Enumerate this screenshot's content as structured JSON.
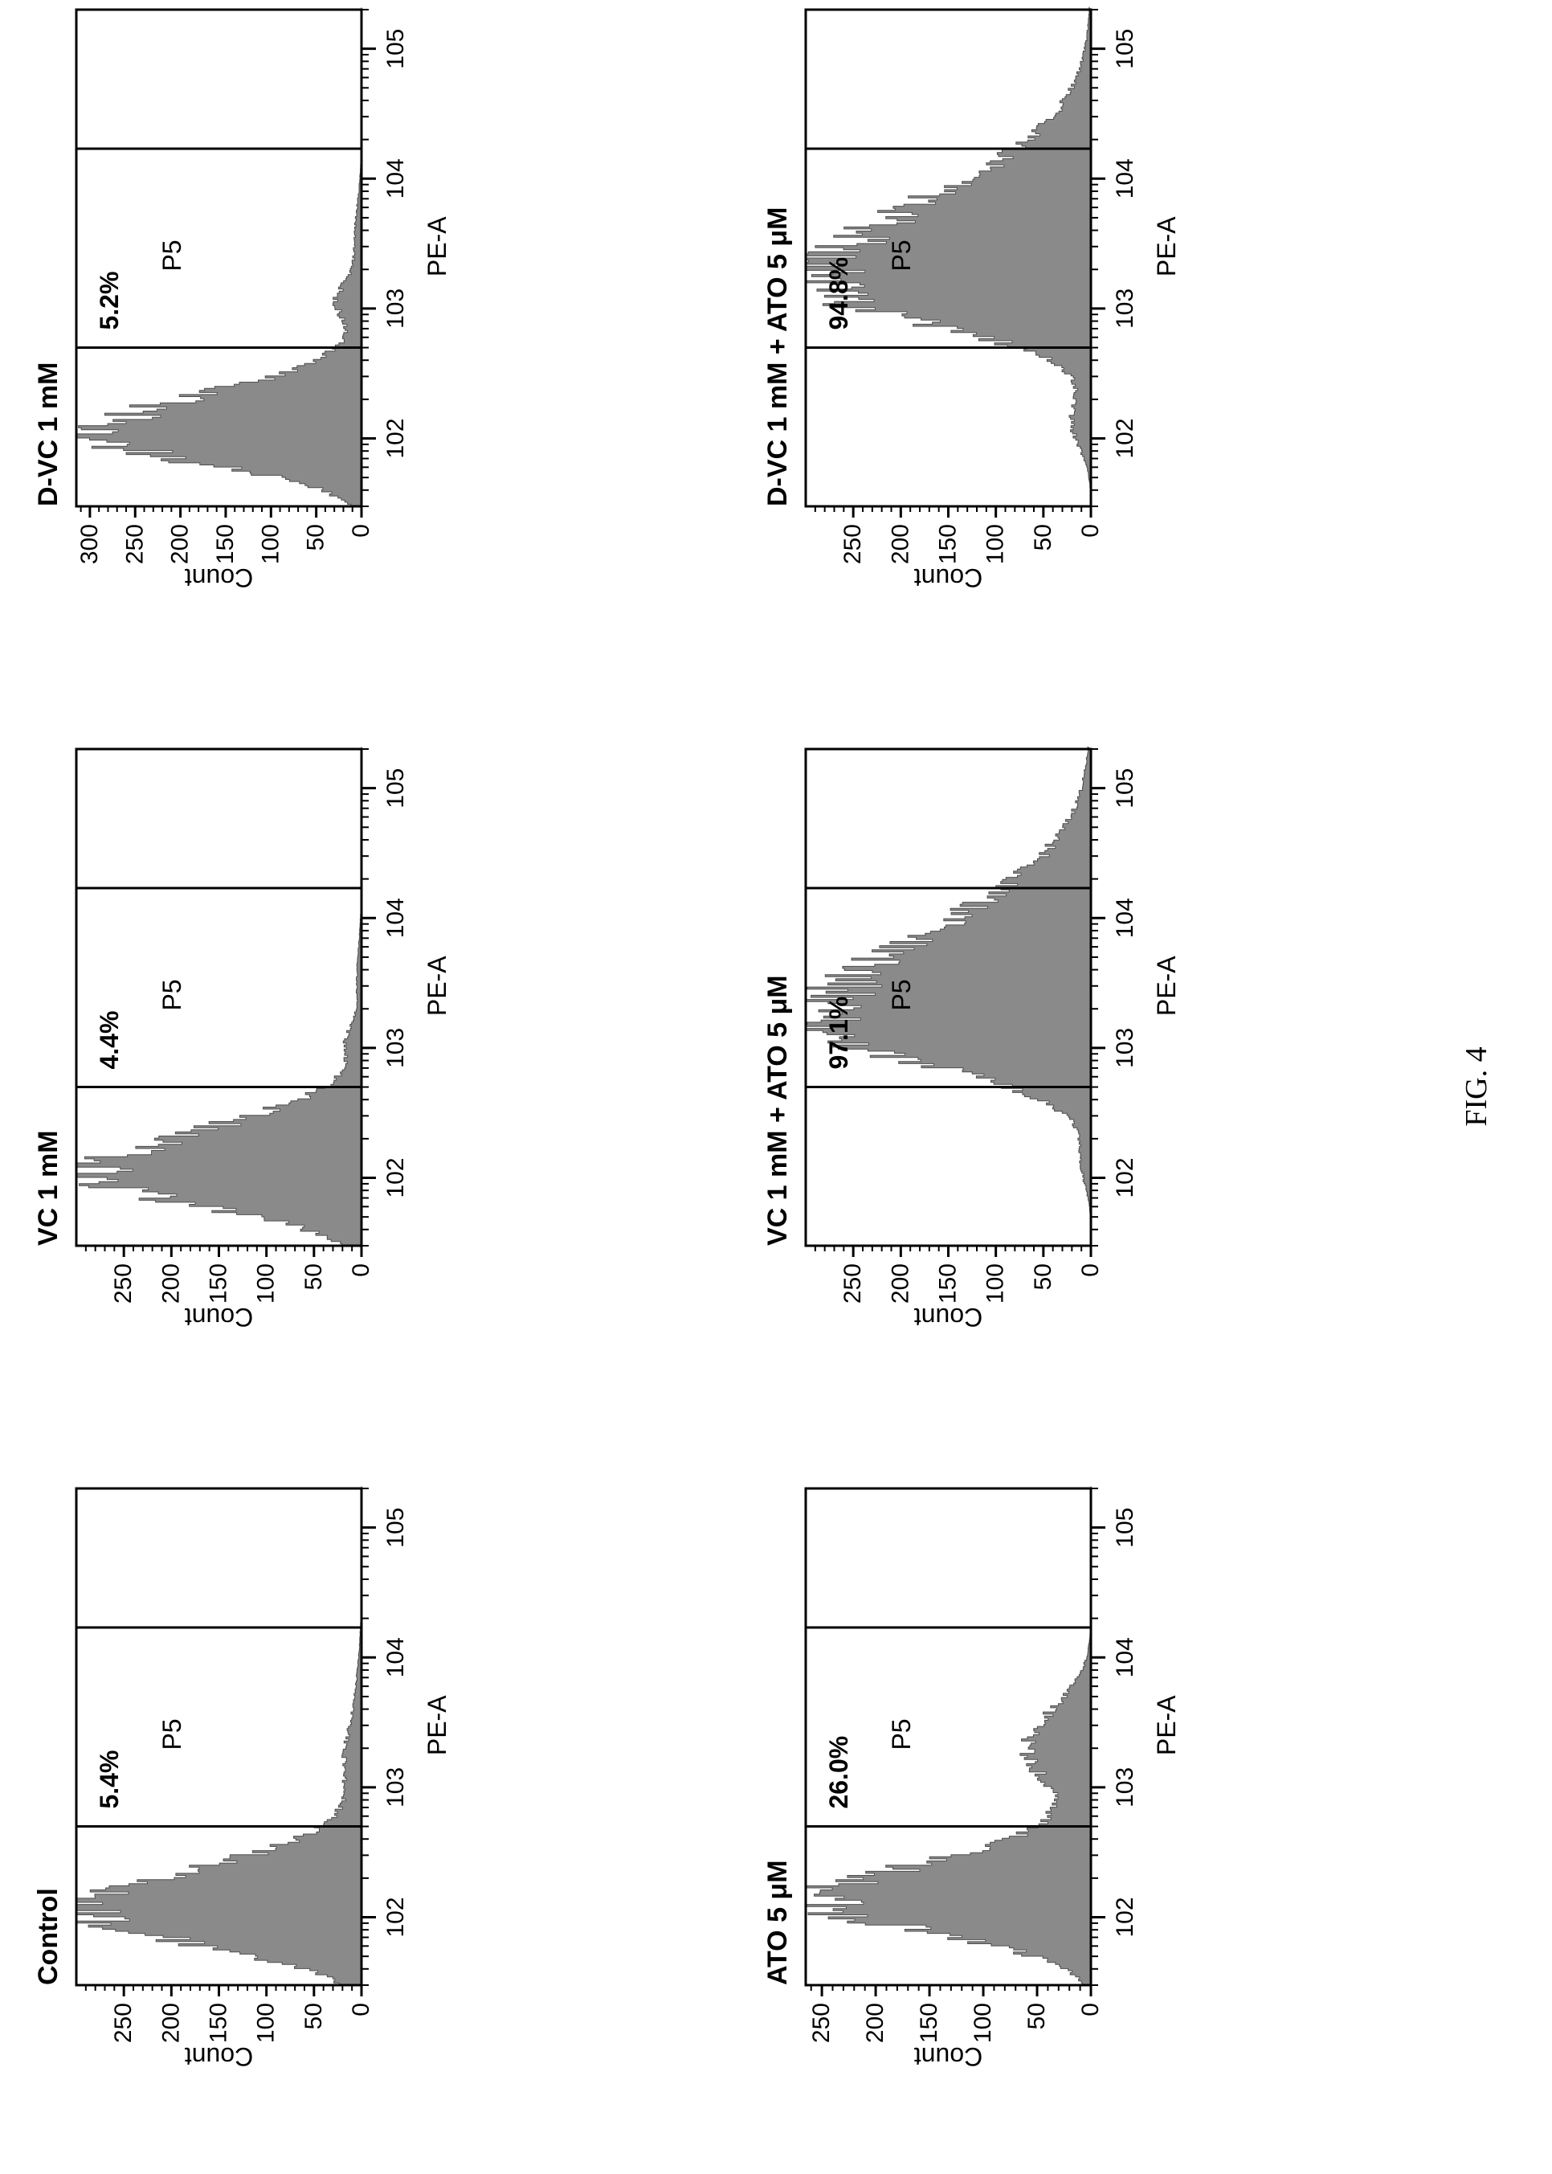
{
  "figure_label": "FIG. 4",
  "colors": {
    "histogram_fill": "#8a8a8a",
    "histogram_edge": "#4d4d4d",
    "axis": "#000000"
  },
  "chart_data": [
    {
      "type": "area",
      "title": "Control",
      "xlabel": "PE-A",
      "ylabel": "Count",
      "x_scale": "log",
      "xlim": [
        30,
        200000
      ],
      "x_ticks": [
        100,
        1000,
        10000,
        100000
      ],
      "x_tick_labels": [
        "102",
        "103",
        "104",
        "105"
      ],
      "ylim": [
        0,
        300
      ],
      "y_ticks": [
        0,
        50,
        100,
        150,
        200,
        250
      ],
      "gate": {
        "name": "P5",
        "range": [
          500,
          17000
        ],
        "percent": "5.4%"
      },
      "series": [
        {
          "components": [
            {
              "center": 105,
              "sigma": 0.24,
              "peak": 300,
              "skew": 1.4
            },
            {
              "center": 1500,
              "sigma": 0.26,
              "peak": 17,
              "skew": 1.0
            },
            {
              "center": 5000,
              "sigma": 0.3,
              "peak": 5,
              "skew": 1.0
            }
          ]
        }
      ]
    },
    {
      "type": "area",
      "title": "VC 1 mM",
      "xlabel": "PE-A",
      "ylabel": "Count",
      "x_scale": "log",
      "xlim": [
        30,
        200000
      ],
      "x_ticks": [
        100,
        1000,
        10000,
        100000
      ],
      "x_tick_labels": [
        "102",
        "103",
        "104",
        "105"
      ],
      "ylim": [
        0,
        300
      ],
      "y_ticks": [
        0,
        50,
        100,
        150,
        200,
        250
      ],
      "gate": {
        "name": "P5",
        "range": [
          500,
          17000
        ],
        "percent": "4.4%"
      },
      "series": [
        {
          "components": [
            {
              "center": 105,
              "sigma": 0.24,
              "peak": 292,
              "skew": 1.4
            },
            {
              "center": 1100,
              "sigma": 0.12,
              "peak": 13,
              "skew": 1.0
            },
            {
              "center": 3000,
              "sigma": 0.3,
              "peak": 5,
              "skew": 1.0
            }
          ]
        }
      ]
    },
    {
      "type": "area",
      "title": "D-VC 1 mM",
      "xlabel": "PE-A",
      "ylabel": "Count",
      "x_scale": "log",
      "xlim": [
        30,
        200000
      ],
      "x_ticks": [
        100,
        1000,
        10000,
        100000
      ],
      "x_tick_labels": [
        "102",
        "103",
        "104",
        "105"
      ],
      "ylim": [
        0,
        315
      ],
      "y_ticks": [
        0,
        50,
        100,
        150,
        200,
        250,
        300
      ],
      "gate": {
        "name": "P5",
        "range": [
          500,
          17000
        ],
        "percent": "5.2%"
      },
      "series": [
        {
          "components": [
            {
              "center": 105,
              "sigma": 0.22,
              "peak": 300,
              "skew": 1.4
            },
            {
              "center": 1100,
              "sigma": 0.14,
              "peak": 25,
              "skew": 1.0
            },
            {
              "center": 3000,
              "sigma": 0.3,
              "peak": 8,
              "skew": 1.0
            }
          ]
        }
      ]
    },
    {
      "type": "area",
      "title": "ATO 5 μM",
      "xlabel": "PE-A",
      "ylabel": "Count",
      "x_scale": "log",
      "xlim": [
        30,
        200000
      ],
      "x_ticks": [
        100,
        1000,
        10000,
        100000
      ],
      "x_tick_labels": [
        "102",
        "103",
        "104",
        "105"
      ],
      "ylim": [
        0,
        265
      ],
      "y_ticks": [
        0,
        50,
        100,
        150,
        200,
        250
      ],
      "gate": {
        "name": "P5",
        "range": [
          500,
          17000
        ],
        "percent": "26.0%"
      },
      "series": [
        {
          "components": [
            {
              "center": 130,
              "sigma": 0.24,
              "peak": 255,
              "skew": 1.3
            },
            {
              "center": 2000,
              "sigma": 0.3,
              "peak": 60,
              "skew": 1.0
            }
          ]
        }
      ]
    },
    {
      "type": "area",
      "title": "VC 1 mM + ATO 5 μM",
      "xlabel": "PE-A",
      "ylabel": "Count",
      "x_scale": "log",
      "xlim": [
        30,
        200000
      ],
      "x_ticks": [
        100,
        1000,
        10000,
        100000
      ],
      "x_tick_labels": [
        "102",
        "103",
        "104",
        "105"
      ],
      "ylim": [
        0,
        300
      ],
      "y_ticks": [
        0,
        50,
        100,
        150,
        200,
        250
      ],
      "gate": {
        "name": "P5",
        "range": [
          500,
          17000
        ],
        "percent": "97.1%"
      },
      "series": [
        {
          "components": [
            {
              "center": 1500,
              "sigma": 0.32,
              "peak": 290,
              "skew": 2.2
            },
            {
              "center": 130,
              "sigma": 0.18,
              "peak": 10,
              "skew": 1.0
            }
          ]
        }
      ]
    },
    {
      "type": "area",
      "title": "D-VC 1 mM + ATO 5 μM",
      "xlabel": "PE-A",
      "ylabel": "Count",
      "x_scale": "log",
      "xlim": [
        30,
        200000
      ],
      "x_ticks": [
        100,
        1000,
        10000,
        100000
      ],
      "x_tick_labels": [
        "102",
        "103",
        "104",
        "105"
      ],
      "ylim": [
        0,
        300
      ],
      "y_ticks": [
        0,
        50,
        100,
        150,
        200,
        250
      ],
      "gate": {
        "name": "P5",
        "range": [
          500,
          17000
        ],
        "percent": "94.8%"
      },
      "series": [
        {
          "components": [
            {
              "center": 1500,
              "sigma": 0.3,
              "peak": 290,
              "skew": 2.2
            },
            {
              "center": 130,
              "sigma": 0.2,
              "peak": 20,
              "skew": 1.0
            }
          ]
        }
      ]
    }
  ]
}
